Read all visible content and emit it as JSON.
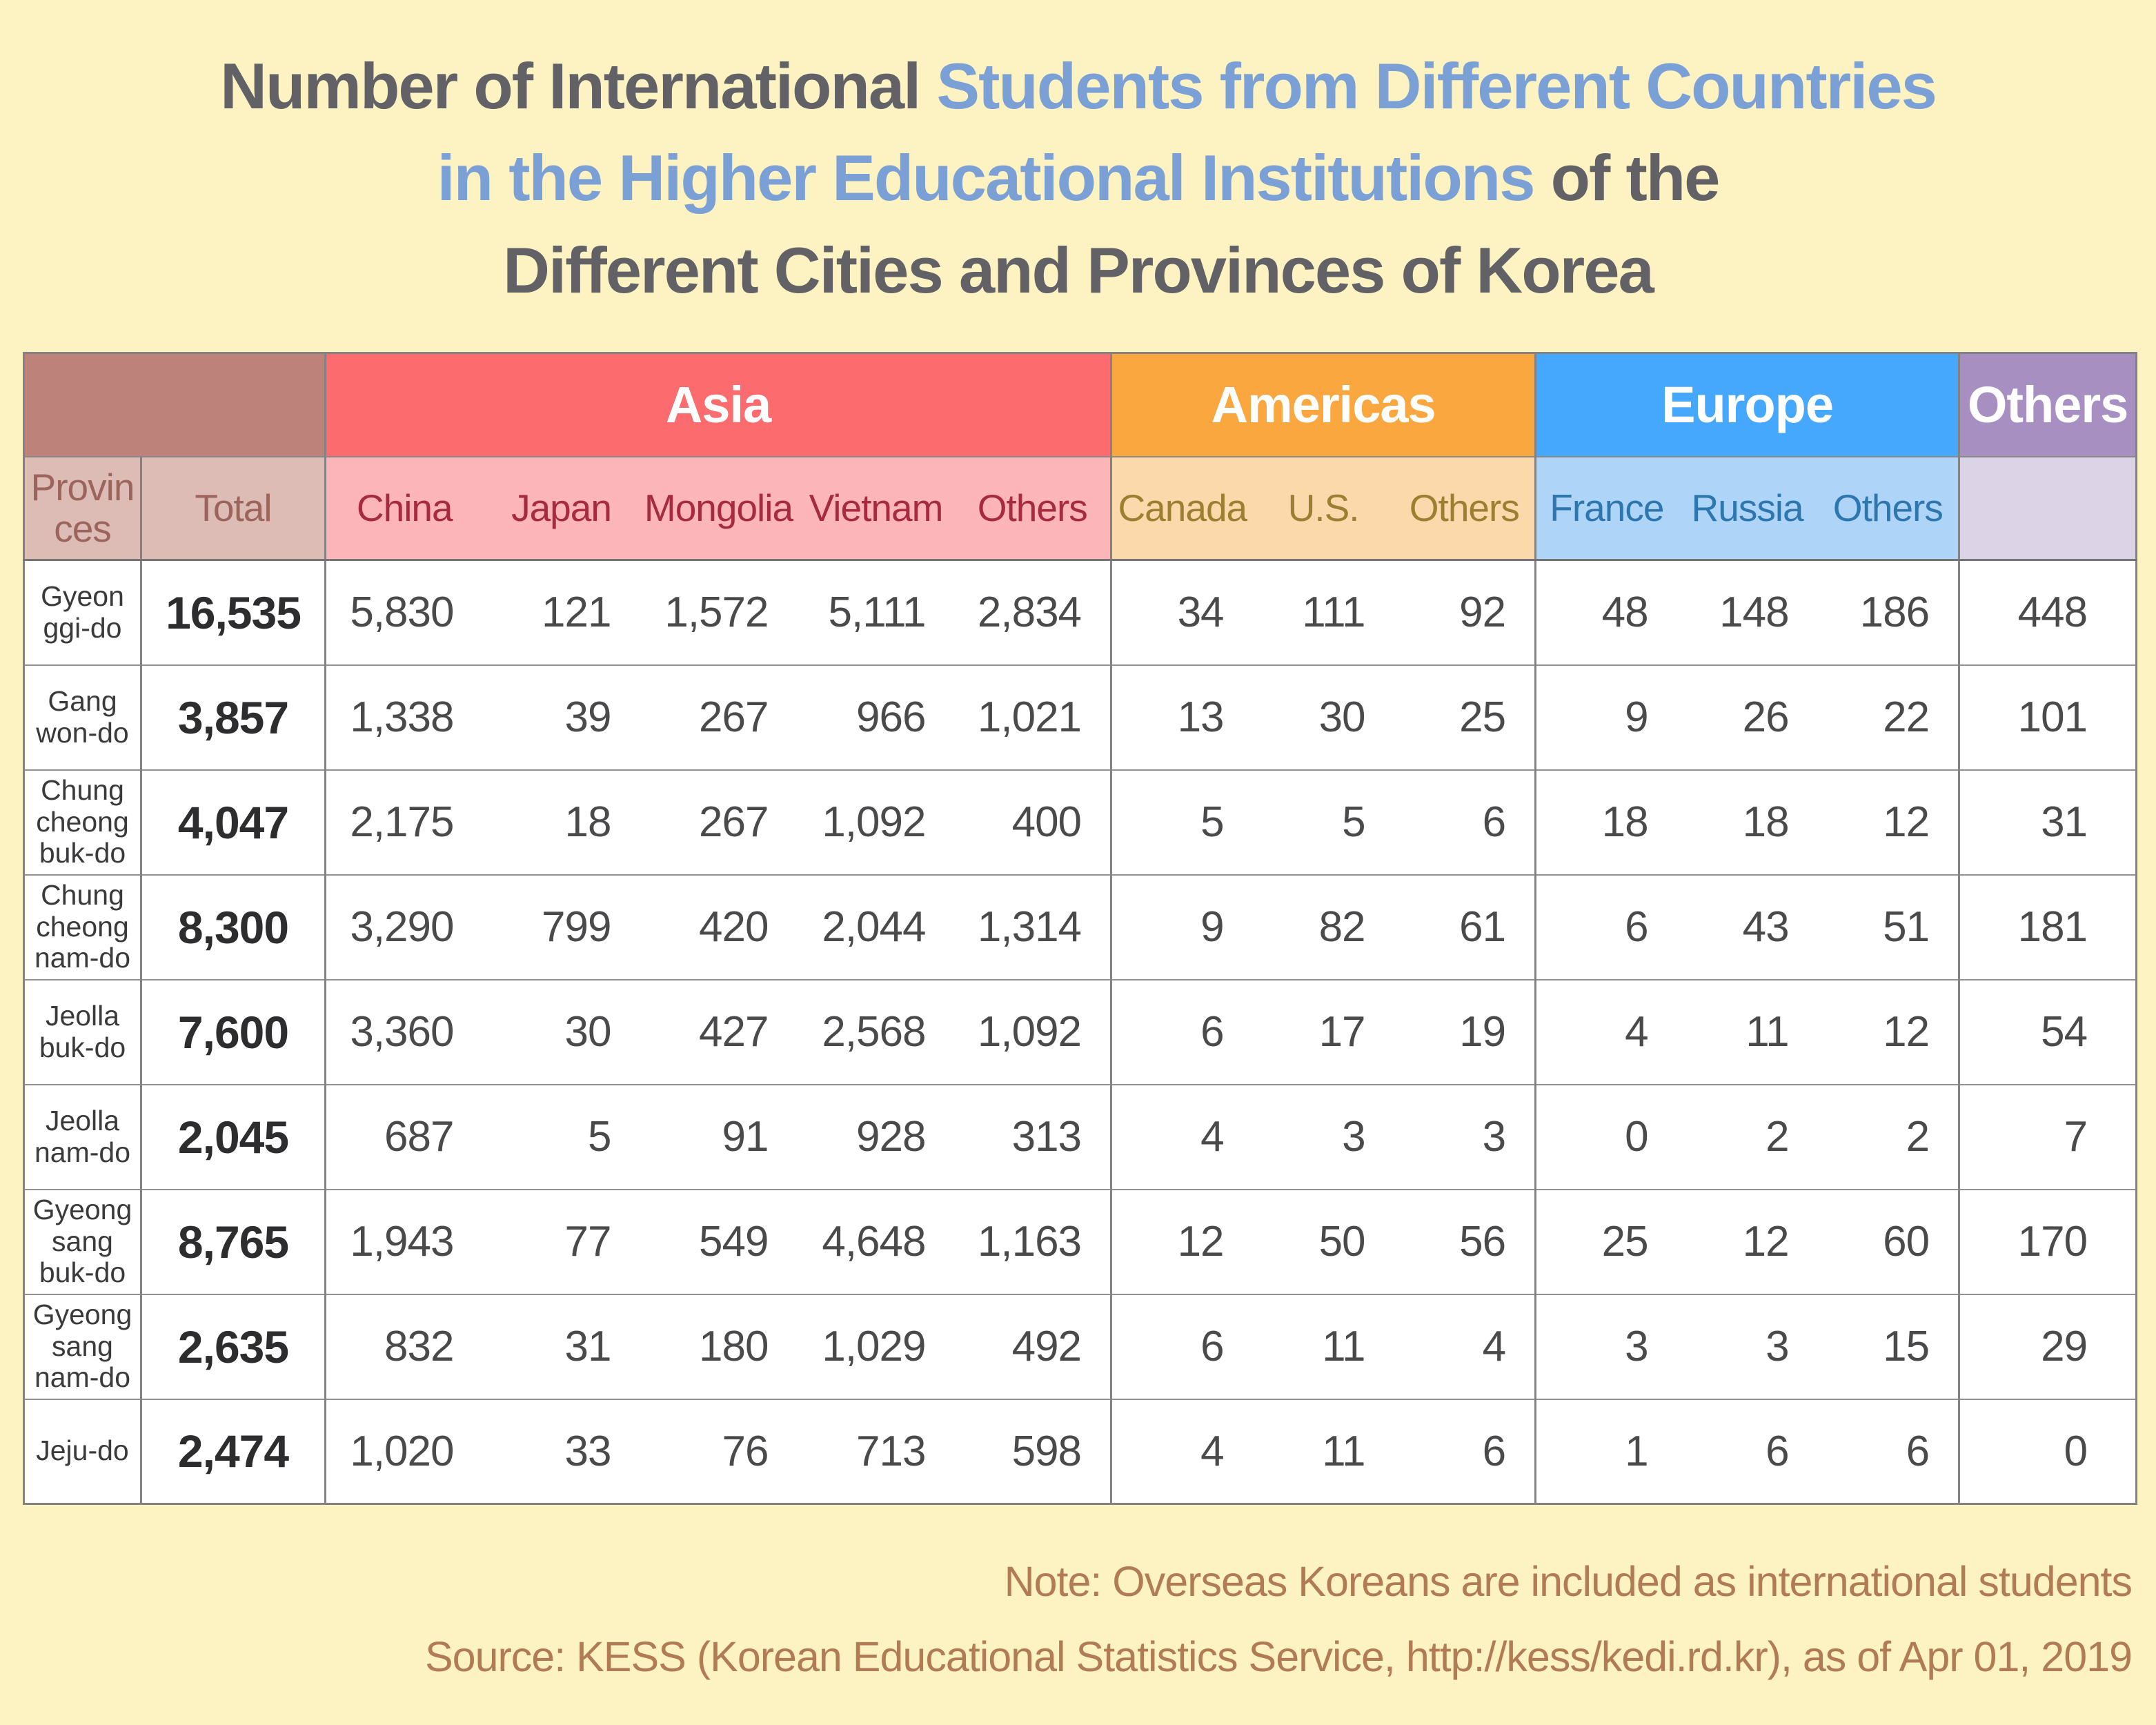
{
  "title": {
    "seg1": "Number of International ",
    "seg2": "Students from Different Countries",
    "seg3": "in the Higher Educational Institutions",
    "seg4": " of the",
    "seg5": "Different Cities and Provinces of Korea"
  },
  "table": {
    "corner_label": "Provin\nces",
    "total_label": "Total",
    "groups": [
      {
        "label": "Asia",
        "header_bg": "#fc6b6e",
        "sub_bg": "#fcb5b9",
        "sub_text": "#a62b3e",
        "columns": [
          "China",
          "Japan",
          "Mongolia",
          "Vietnam",
          "Others"
        ]
      },
      {
        "label": "Americas",
        "header_bg": "#f9a73e",
        "sub_bg": "#fbd9ab",
        "sub_text": "#9c7f30",
        "columns": [
          "Canada",
          "U.S.",
          "Others"
        ]
      },
      {
        "label": "Europe",
        "header_bg": "#46a8fc",
        "sub_bg": "#aed5f8",
        "sub_text": "#2d76ae",
        "columns": [
          "France",
          "Russia",
          "Others"
        ]
      },
      {
        "label": "Others",
        "header_bg": "#a78fc1",
        "sub_bg": "#ddd3e7",
        "sub_text": "#6b5a80",
        "columns": [
          ""
        ]
      }
    ]
  },
  "chart_data": {
    "type": "table",
    "title": "Number of International Students from Different Countries in the Higher Educational Institutions of the Different Cities and Provinces of Korea",
    "column_groups": [
      {
        "group": "",
        "columns": [
          "Provinces",
          "Total"
        ]
      },
      {
        "group": "Asia",
        "columns": [
          "China",
          "Japan",
          "Mongolia",
          "Vietnam",
          "Others"
        ]
      },
      {
        "group": "Americas",
        "columns": [
          "Canada",
          "U.S.",
          "Others"
        ]
      },
      {
        "group": "Europe",
        "columns": [
          "France",
          "Russia",
          "Others"
        ]
      },
      {
        "group": "Others",
        "columns": [
          ""
        ]
      }
    ],
    "rows": [
      {
        "province": "Gyeonggi-do",
        "province_label": "Gyeon\nggi-do",
        "total": "16,535",
        "values": [
          "5,830",
          "121",
          "1,572",
          "5,111",
          "2,834",
          "34",
          "111",
          "92",
          "48",
          "148",
          "186",
          "448"
        ]
      },
      {
        "province": "Gangwon-do",
        "province_label": "Gang\nwon-do",
        "total": "3,857",
        "values": [
          "1,338",
          "39",
          "267",
          "966",
          "1,021",
          "13",
          "30",
          "25",
          "9",
          "26",
          "22",
          "101"
        ]
      },
      {
        "province": "Chungcheongbuk-do",
        "province_label": "Chung\ncheong\nbuk-do",
        "total": "4,047",
        "values": [
          "2,175",
          "18",
          "267",
          "1,092",
          "400",
          "5",
          "5",
          "6",
          "18",
          "18",
          "12",
          "31"
        ]
      },
      {
        "province": "Chungcheongnam-do",
        "province_label": "Chung\ncheong\nnam-do",
        "total": "8,300",
        "values": [
          "3,290",
          "799",
          "420",
          "2,044",
          "1,314",
          "9",
          "82",
          "61",
          "6",
          "43",
          "51",
          "181"
        ]
      },
      {
        "province": "Jeollabuk-do",
        "province_label": "Jeolla\nbuk-do",
        "total": "7,600",
        "values": [
          "3,360",
          "30",
          "427",
          "2,568",
          "1,092",
          "6",
          "17",
          "19",
          "4",
          "11",
          "12",
          "54"
        ]
      },
      {
        "province": "Jeollanam-do",
        "province_label": "Jeolla\nnam-do",
        "total": "2,045",
        "values": [
          "687",
          "5",
          "91",
          "928",
          "313",
          "4",
          "3",
          "3",
          "0",
          "2",
          "2",
          "7"
        ]
      },
      {
        "province": "Gyeongsangbuk-do",
        "province_label": "Gyeong\nsang\nbuk-do",
        "total": "8,765",
        "values": [
          "1,943",
          "77",
          "549",
          "4,648",
          "1,163",
          "12",
          "50",
          "56",
          "25",
          "12",
          "60",
          "170"
        ]
      },
      {
        "province": "Gyeongsangnam-do",
        "province_label": "Gyeong\nsang\nnam-do",
        "total": "2,635",
        "values": [
          "832",
          "31",
          "180",
          "1,029",
          "492",
          "6",
          "11",
          "4",
          "3",
          "3",
          "15",
          "29"
        ]
      },
      {
        "province": "Jeju-do",
        "province_label": "Jeju-do",
        "total": "2,474",
        "values": [
          "1,020",
          "33",
          "76",
          "713",
          "598",
          "4",
          "11",
          "6",
          "1",
          "6",
          "6",
          "0"
        ]
      }
    ]
  },
  "note": "Note: Overseas Koreans are included as international students",
  "source": "Source: KESS (Korean Educational Statistics Service, http://kess/kedi.rd.kr), as of Apr 01, 2019",
  "colors": {
    "background": "#fcf2c2",
    "title_gray": "#616166",
    "title_blue": "#7ba0d6",
    "corner_bg": "#bd837b",
    "corner_sub_bg": "#ddbcb6",
    "corner_sub_text": "#9c655c",
    "asia": "#fc6b6e",
    "americas": "#f9a73e",
    "europe": "#46a8fc",
    "others": "#a78fc1",
    "note_text": "#b17c55",
    "grid_line": "#838383"
  }
}
